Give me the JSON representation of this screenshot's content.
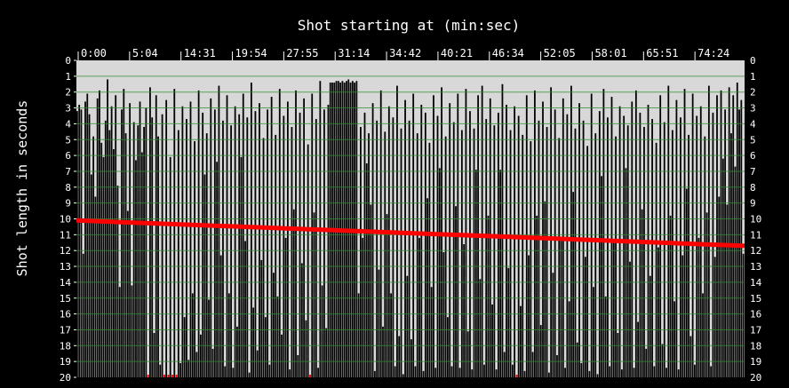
{
  "chart_data": {
    "type": "bar",
    "title": "Shot starting at (min:sec)",
    "ylabel": "Shot length in seconds",
    "x_tick_labels": [
      "0:00",
      "5:04",
      "14:31",
      "19:54",
      "27:55",
      "31:14",
      "34:42",
      "40:21",
      "46:34",
      "52:05",
      "58:01",
      "65:51",
      "74:24"
    ],
    "y_ticks": [
      0,
      1,
      2,
      3,
      4,
      5,
      6,
      7,
      8,
      9,
      10,
      11,
      12,
      13,
      14,
      15,
      16,
      17,
      18,
      19,
      20
    ],
    "ylim": [
      0,
      20
    ],
    "y_inverted": true,
    "grid": true,
    "colors": {
      "background": "#000000",
      "plot_background": "#d8d8d8",
      "bars": "#000000",
      "grid": "#2f8f2f",
      "trend": "#ff0000",
      "text": "#ffffff"
    },
    "series": [
      {
        "values": [
          3.2,
          2.8,
          3.1,
          12.2,
          2.6,
          2.1,
          3.4,
          7.2,
          4.8,
          8.6,
          2.4,
          1.9,
          5.2,
          6.1,
          3.8,
          1.2,
          4.4,
          2.9,
          5.6,
          2.2,
          7.9,
          14.3,
          3.1,
          1.8,
          4.6,
          9.5,
          2.7,
          14.2,
          3.9,
          6.3,
          4.1,
          2.6,
          5.8,
          4.2,
          3.0,
          20,
          1.7,
          3.6,
          17.2,
          2.2,
          4.8,
          19.2,
          3.4,
          20,
          2.5,
          20,
          6.1,
          20,
          1.8,
          20,
          4.4,
          19.1,
          2.9,
          16.2,
          3.7,
          18.9,
          2.6,
          14.7,
          5.1,
          18.4,
          1.9,
          17.3,
          3.3,
          7.2,
          4.6,
          15.1,
          2.4,
          18.2,
          3.1,
          6.4,
          1.6,
          12.3,
          3.8,
          19.3,
          2.2,
          14.7,
          4.1,
          19.4,
          2.9,
          16.8,
          3.4,
          6.1,
          2.1,
          11.4,
          3.6,
          19.7,
          1.4,
          15.6,
          3.2,
          18.3,
          2.7,
          12.6,
          4.9,
          16.2,
          3.1,
          19.2,
          2.3,
          13.4,
          4.7,
          14.9,
          1.8,
          17.3,
          3.5,
          11.2,
          2.6,
          19.5,
          4.2,
          9.4,
          1.9,
          18.6,
          3.3,
          12.8,
          2.4,
          16.4,
          5.3,
          20,
          2.1,
          9.6,
          3.7,
          19.4,
          1.3,
          14.2,
          3.1,
          16.9,
          2.8,
          1.4,
          1.4,
          1.4,
          1.3,
          1.3,
          1.4,
          1.3,
          1.4,
          1.3,
          1.2,
          1.4,
          1.3,
          1.4,
          1.3,
          14.7,
          4.2,
          11.2,
          3.3,
          6.5,
          4.6,
          9.1,
          2.7,
          19.6,
          3.8,
          13.2,
          1.9,
          16.8,
          4.5,
          9.7,
          2.9,
          14.7,
          3.6,
          19.3,
          1.6,
          17.4,
          4.3,
          19.8,
          2.5,
          13.6,
          3.8,
          17.6,
          2.1,
          19.3,
          4.6,
          11.2,
          2.8,
          19.6,
          3.3,
          8.7,
          5.2,
          14.3,
          2.2,
          19.4,
          3.5,
          6.8,
          1.7,
          12.1,
          4.8,
          16.2,
          2.7,
          19.3,
          3.9,
          9.2,
          2.1,
          19.4,
          4.4,
          11.6,
          1.8,
          17.1,
          3.2,
          19.5,
          4.3,
          6.9,
          2.2,
          13.8,
          1.6,
          19.2,
          3.7,
          9.8,
          2.4,
          15.4,
          4.1,
          19.5,
          3.3,
          6.9,
          1.5,
          18.4,
          2.8,
          13.1,
          4.4,
          19.2,
          2.9,
          20,
          3.5,
          15.5,
          4.7,
          19.6,
          2.2,
          12.3,
          5.1,
          18.4,
          1.9,
          9.8,
          3.8,
          16.7,
          2.6,
          8.9,
          4.2,
          19.7,
          1.7,
          13.4,
          3.1,
          18.6,
          4.9,
          11.3,
          2.4,
          19.4,
          3.4,
          15.2,
          1.6,
          8.3,
          4.3,
          17.8,
          2.7,
          19.1,
          3.8,
          12.4,
          5.4,
          19.6,
          2.1,
          14.3,
          4.6,
          19.8,
          3.2,
          7.3,
          1.8,
          14.9,
          3.6,
          19.3,
          2.3,
          11.4,
          4.8,
          17.2,
          2.9,
          19.5,
          3.5,
          6.8,
          4.1,
          12.7,
          2.6,
          19.4,
          1.9,
          16.5,
          3.3,
          9.4,
          4.2,
          18.2,
          2.8,
          13.6,
          3.7,
          19.3,
          5.2,
          11.8,
          2.2,
          17.9,
          3.9,
          19.4,
          1.6,
          9.8,
          4.4,
          15.2,
          2.5,
          19.5,
          3.6,
          12.3,
          1.8,
          8.1,
          4.7,
          17.4,
          2.1,
          19.2,
          3.5,
          11.2,
          2.9,
          14.7,
          4.8,
          9.6,
          1.6,
          19.3,
          3.3,
          12.4,
          2.2,
          8.6,
          1.9,
          6.2,
          3.1,
          9.1,
          1.7,
          4.6,
          2.2,
          6.7,
          1.4,
          3.1,
          2.5,
          12.2
        ]
      }
    ],
    "trend": {
      "start": 10.1,
      "end": 11.7
    }
  }
}
